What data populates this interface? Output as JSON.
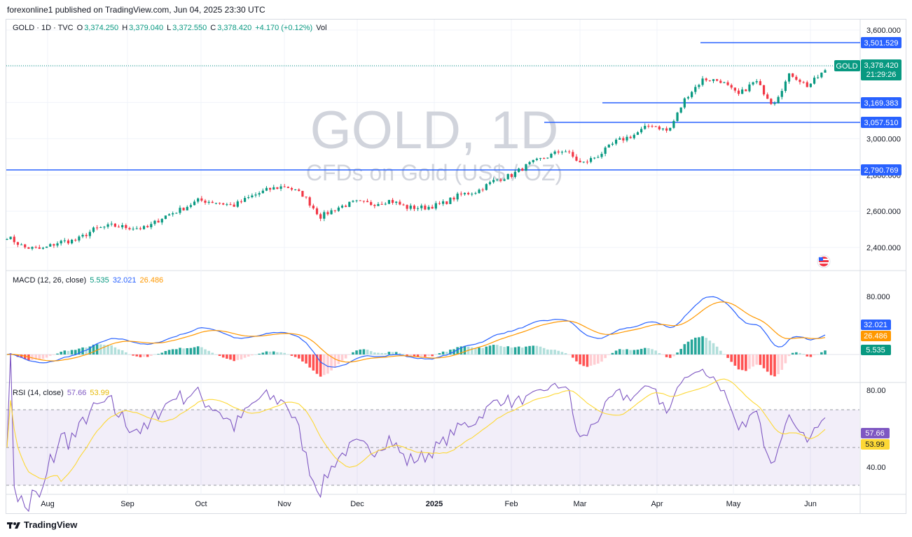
{
  "header": {
    "publisher_line": "forexonline1 published on TradingView.com, Jun 04, 2025 23:30 UTC"
  },
  "main_legend": {
    "symbol": "GOLD · 1D · TVC",
    "open_label": "O",
    "open": "3,374.250",
    "high_label": "H",
    "high": "3,379.040",
    "low_label": "L",
    "low": "3,372.550",
    "close_label": "C",
    "close": "3,378.420",
    "change": "+4.170 (+0.12%)",
    "vol": "Vol"
  },
  "watermark": {
    "title": "GOLD, 1D",
    "subtitle": "CFDs on Gold (US$ / OZ)"
  },
  "price_tag": {
    "symbol": "GOLD",
    "price": "3,378.420",
    "countdown": "21:29:26"
  },
  "macd_legend": {
    "name": "MACD (12, 26, close)",
    "hist": "5.535",
    "macd": "32.021",
    "signal": "26.486"
  },
  "rsi_legend": {
    "name": "RSI (14, close)",
    "rsi": "57.66",
    "ma": "53.99"
  },
  "footer": {
    "brand": "TradingView"
  },
  "colors": {
    "up": "#089981",
    "down": "#f23645",
    "level": "#2962ff",
    "macd": "#2962ff",
    "signal": "#ff9800",
    "rsi": "#7e57c2",
    "rsi_ma": "#fdd835"
  },
  "chart_data": [
    {
      "type": "candlestick",
      "title": "GOLD, 1D",
      "x_ticks": [
        "Aug",
        "Sep",
        "Oct",
        "Nov",
        "Dec",
        "2025",
        "Feb",
        "Mar",
        "Apr",
        "May",
        "Jun"
      ],
      "y_ticks": [
        "2,400.000",
        "2,600.000",
        "2,800.000",
        "3,000.000",
        "3,200.000",
        "3,400.000",
        "3,600.000"
      ],
      "ylim": [
        2280,
        3650
      ],
      "close_path": [
        [
          "2024-07-08",
          2460
        ],
        [
          "2024-07-15",
          2400
        ],
        [
          "2024-07-22",
          2390
        ],
        [
          "2024-07-29",
          2430
        ],
        [
          "2024-08-05",
          2440
        ],
        [
          "2024-08-12",
          2500
        ],
        [
          "2024-08-19",
          2520
        ],
        [
          "2024-08-26",
          2510
        ],
        [
          "2024-09-02",
          2505
        ],
        [
          "2024-09-09",
          2570
        ],
        [
          "2024-09-16",
          2610
        ],
        [
          "2024-09-23",
          2660
        ],
        [
          "2024-09-30",
          2650
        ],
        [
          "2024-10-07",
          2630
        ],
        [
          "2024-10-14",
          2680
        ],
        [
          "2024-10-21",
          2720
        ],
        [
          "2024-10-28",
          2740
        ],
        [
          "2024-11-04",
          2690
        ],
        [
          "2024-11-11",
          2570
        ],
        [
          "2024-11-18",
          2620
        ],
        [
          "2024-11-25",
          2650
        ],
        [
          "2024-12-02",
          2640
        ],
        [
          "2024-12-09",
          2660
        ],
        [
          "2024-12-16",
          2620
        ],
        [
          "2024-12-23",
          2620
        ],
        [
          "2024-12-30",
          2640
        ],
        [
          "2025-01-06",
          2690
        ],
        [
          "2025-01-13",
          2710
        ],
        [
          "2025-01-20",
          2770
        ],
        [
          "2025-01-27",
          2800
        ],
        [
          "2025-02-03",
          2860
        ],
        [
          "2025-02-10",
          2900
        ],
        [
          "2025-02-17",
          2940
        ],
        [
          "2025-02-24",
          2860
        ],
        [
          "2025-03-03",
          2910
        ],
        [
          "2025-03-10",
          2985
        ],
        [
          "2025-03-17",
          3020
        ],
        [
          "2025-03-24",
          3080
        ],
        [
          "2025-03-31",
          3040
        ],
        [
          "2025-04-07",
          3230
        ],
        [
          "2025-04-14",
          3330
        ],
        [
          "2025-04-21",
          3320
        ],
        [
          "2025-04-28",
          3240
        ],
        [
          "2025-05-05",
          3320
        ],
        [
          "2025-05-12",
          3190
        ],
        [
          "2025-05-19",
          3360
        ],
        [
          "2025-05-26",
          3290
        ],
        [
          "2025-06-02",
          3378
        ]
      ],
      "levels": [
        "3,501.529",
        "3,169.383",
        "3,057.510",
        "2,790.769"
      ],
      "last_price": "3,378.420"
    },
    {
      "type": "line",
      "title": "MACD (12, 26, close)",
      "y_ticks": [
        "80.000"
      ],
      "series": [
        {
          "name": "MACD",
          "last": "32.021"
        },
        {
          "name": "Signal",
          "last": "26.486"
        },
        {
          "name": "Histogram",
          "last": "5.535"
        }
      ]
    },
    {
      "type": "line",
      "title": "RSI (14, close)",
      "y_ticks": [
        "80.00",
        "40.00"
      ],
      "band": [
        30,
        70
      ],
      "series": [
        {
          "name": "RSI",
          "last": "57.66"
        },
        {
          "name": "RSI MA",
          "last": "53.99"
        }
      ]
    }
  ]
}
